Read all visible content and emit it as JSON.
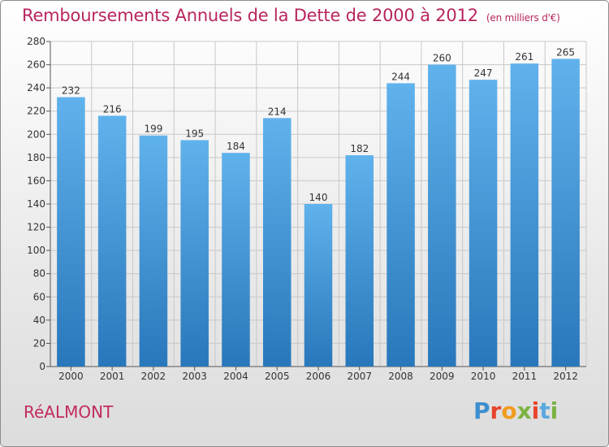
{
  "header": {
    "title": "Remboursements Annuels de la Dette de 2000 à 2012",
    "subtitle": "(en milliers d'€)"
  },
  "footer": {
    "city": "RéALMONT",
    "brand": "Proxiti"
  },
  "colors": {
    "title": "#b8255f",
    "bar_light": "#5eb0ea",
    "bar_dark": "#2a79bd",
    "grid": "#c8c8c8"
  },
  "chart_data": {
    "type": "bar",
    "title": "Remboursements Annuels de la Dette de 2000 à 2012",
    "xlabel": "",
    "ylabel": "",
    "categories": [
      "2000",
      "2001",
      "2002",
      "2003",
      "2004",
      "2005",
      "2006",
      "2007",
      "2008",
      "2009",
      "2010",
      "2011",
      "2012"
    ],
    "values": [
      232,
      216,
      199,
      195,
      184,
      214,
      140,
      182,
      244,
      260,
      247,
      261,
      265
    ],
    "ylim": [
      0,
      280
    ],
    "yticks": [
      0,
      20,
      40,
      60,
      80,
      100,
      120,
      140,
      160,
      180,
      200,
      220,
      240,
      260,
      280
    ],
    "grid": true,
    "data_labels": true
  }
}
